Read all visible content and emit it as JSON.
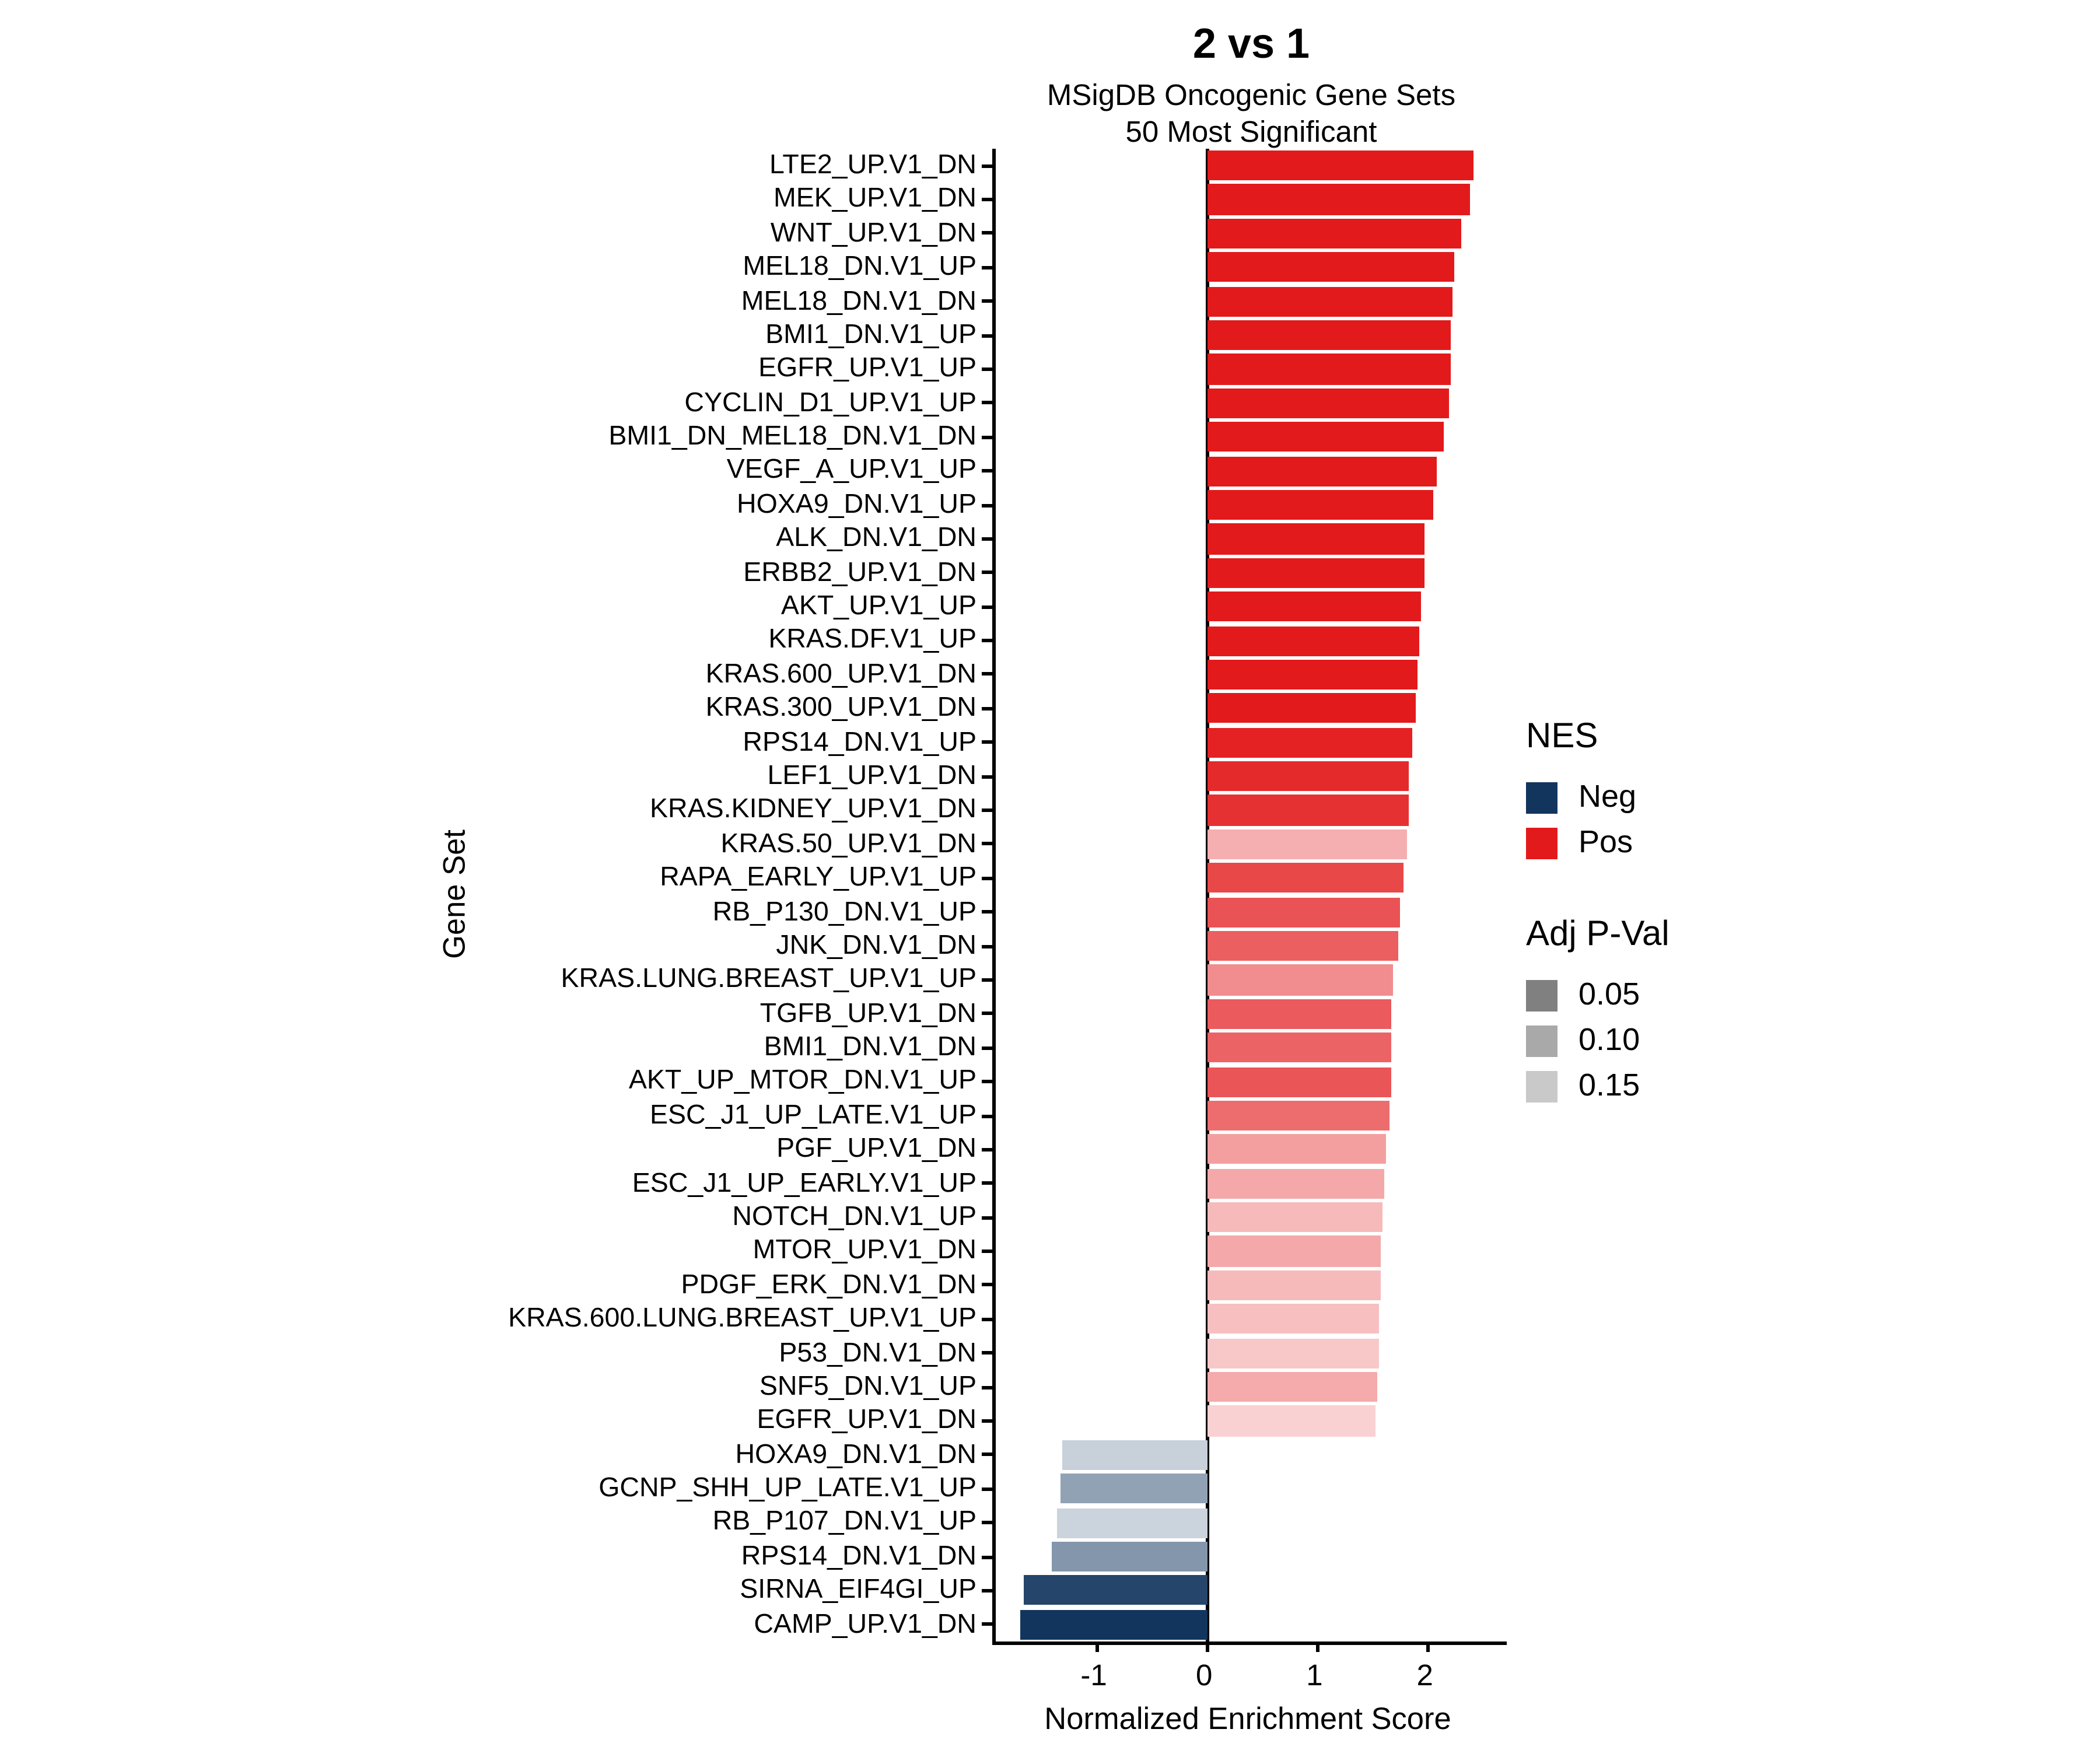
{
  "header": {
    "title": "2 vs 1",
    "subtitle_line1": "MSigDB Oncogenic Gene Sets",
    "subtitle_line2": "50 Most Significant"
  },
  "chart_data": {
    "type": "bar",
    "orientation": "horizontal",
    "title": "2 vs 1",
    "subtitle": "MSigDB Oncogenic Gene Sets 50 Most Significant",
    "xlabel": "Normalized Enrichment Score",
    "ylabel": "Gene Set",
    "xlim": [
      -1.92,
      2.71
    ],
    "x_ticks": [
      -1,
      0,
      1,
      2
    ],
    "x_tick_labels": [
      "-1",
      "0",
      "1",
      "2"
    ],
    "grid": false,
    "legend_position": "right",
    "bars": [
      {
        "label": "LTE2_UP.V1_DN",
        "nes": 2.41,
        "fill": "#E31A1C"
      },
      {
        "label": "MEK_UP.V1_DN",
        "nes": 2.37,
        "fill": "#E31A1C"
      },
      {
        "label": "WNT_UP.V1_DN",
        "nes": 2.29,
        "fill": "#E31A1C"
      },
      {
        "label": "MEL18_DN.V1_UP",
        "nes": 2.24,
        "fill": "#E31A1C"
      },
      {
        "label": "MEL18_DN.V1_DN",
        "nes": 2.22,
        "fill": "#E31A1C"
      },
      {
        "label": "BMI1_DN.V1_UP",
        "nes": 2.21,
        "fill": "#E31A1C"
      },
      {
        "label": "EGFR_UP.V1_UP",
        "nes": 2.2,
        "fill": "#E31A1C"
      },
      {
        "label": "CYCLIN_D1_UP.V1_UP",
        "nes": 2.19,
        "fill": "#E31A1C"
      },
      {
        "label": "BMI1_DN_MEL18_DN.V1_DN",
        "nes": 2.14,
        "fill": "#E31A1C"
      },
      {
        "label": "VEGF_A_UP.V1_UP",
        "nes": 2.08,
        "fill": "#E31A1C"
      },
      {
        "label": "HOXA9_DN.V1_UP",
        "nes": 2.04,
        "fill": "#E31A1C"
      },
      {
        "label": "ALK_DN.V1_DN",
        "nes": 1.97,
        "fill": "#E31A1C"
      },
      {
        "label": "ERBB2_UP.V1_DN",
        "nes": 1.96,
        "fill": "#E31A1C"
      },
      {
        "label": "AKT_UP.V1_UP",
        "nes": 1.93,
        "fill": "#E31A1C"
      },
      {
        "label": "KRAS.DF.V1_UP",
        "nes": 1.91,
        "fill": "#E31A1C"
      },
      {
        "label": "KRAS.600_UP.V1_DN",
        "nes": 1.9,
        "fill": "#E31A1C"
      },
      {
        "label": "KRAS.300_UP.V1_DN",
        "nes": 1.89,
        "fill": "#E31A1C"
      },
      {
        "label": "RPS14_DN.V1_UP",
        "nes": 1.85,
        "fill": "#E42123"
      },
      {
        "label": "LEF1_UP.V1_DN",
        "nes": 1.83,
        "fill": "#E52A2C"
      },
      {
        "label": "KRAS.KIDNEY_UP.V1_DN",
        "nes": 1.82,
        "fill": "#E63133"
      },
      {
        "label": "KRAS.50_UP.V1_DN",
        "nes": 1.81,
        "fill": "#F5AFB0"
      },
      {
        "label": "RAPA_EARLY_UP.V1_UP",
        "nes": 1.78,
        "fill": "#E94849"
      },
      {
        "label": "RB_P130_DN.V1_UP",
        "nes": 1.74,
        "fill": "#EA5355"
      },
      {
        "label": "JNK_DN.V1_DN",
        "nes": 1.73,
        "fill": "#EB5F60"
      },
      {
        "label": "KRAS.LUNG.BREAST_UP.V1_UP",
        "nes": 1.68,
        "fill": "#F18D8E"
      },
      {
        "label": "TGFB_UP.V1_DN",
        "nes": 1.67,
        "fill": "#EB5A5C"
      },
      {
        "label": "BMI1_DN.V1_DN",
        "nes": 1.67,
        "fill": "#EC6365"
      },
      {
        "label": "AKT_UP_MTOR_DN.V1_UP",
        "nes": 1.66,
        "fill": "#EA5557"
      },
      {
        "label": "ESC_J1_UP_LATE.V1_UP",
        "nes": 1.65,
        "fill": "#ED6C6E"
      },
      {
        "label": "PGF_UP.V1_DN",
        "nes": 1.62,
        "fill": "#F39FA0"
      },
      {
        "label": "ESC_J1_UP_EARLY.V1_UP",
        "nes": 1.6,
        "fill": "#F4A8A9"
      },
      {
        "label": "NOTCH_DN.V1_UP",
        "nes": 1.59,
        "fill": "#F7BABB"
      },
      {
        "label": "MTOR_UP.V1_DN",
        "nes": 1.57,
        "fill": "#F4A8A9"
      },
      {
        "label": "PDGF_ERK_DN.V1_DN",
        "nes": 1.57,
        "fill": "#F7BABB"
      },
      {
        "label": "KRAS.600.LUNG.BREAST_UP.V1_UP",
        "nes": 1.56,
        "fill": "#F7BFC0"
      },
      {
        "label": "P53_DN.V1_DN",
        "nes": 1.55,
        "fill": "#F8C8C9"
      },
      {
        "label": "SNF5_DN.V1_UP",
        "nes": 1.54,
        "fill": "#F5AAAB"
      },
      {
        "label": "EGFR_UP.V1_DN",
        "nes": 1.52,
        "fill": "#F9D1D2"
      },
      {
        "label": "HOXA9_DN.V1_DN",
        "nes": -1.31,
        "fill": "#C8D0DA"
      },
      {
        "label": "GCNP_SHH_UP_LATE.V1_UP",
        "nes": -1.33,
        "fill": "#92A2B5"
      },
      {
        "label": "RB_P107_DN.V1_UP",
        "nes": -1.36,
        "fill": "#CBD3DC"
      },
      {
        "label": "RPS14_DN.V1_DN",
        "nes": -1.41,
        "fill": "#8496AB"
      },
      {
        "label": "SIRNA_EIF4GI_UP",
        "nes": -1.66,
        "fill": "#25456B"
      },
      {
        "label": "CAMP_UP.V1_DN",
        "nes": -1.7,
        "fill": "#12355E"
      }
    ]
  },
  "legend": {
    "nes": {
      "title": "NES",
      "items": [
        {
          "label": "Neg",
          "color": "#12355E"
        },
        {
          "label": "Pos",
          "color": "#E31A1C"
        }
      ]
    },
    "adj_pval": {
      "title": "Adj P-Val",
      "items": [
        {
          "label": "0.05",
          "color": "#808080"
        },
        {
          "label": "0.10",
          "color": "#A9A9A9"
        },
        {
          "label": "0.15",
          "color": "#C9C9C9"
        }
      ]
    }
  },
  "colors": {
    "positive": "#E31A1C",
    "negative": "#12355E",
    "axis": "#000000",
    "background": "#FFFFFF"
  }
}
